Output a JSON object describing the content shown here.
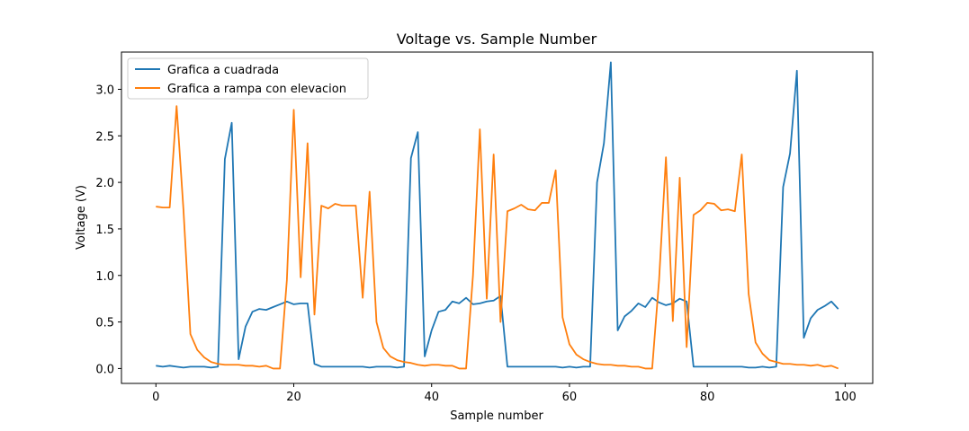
{
  "chart_data": {
    "type": "line",
    "title": "Voltage vs. Sample Number",
    "xlabel": "Sample number",
    "ylabel": "Voltage (V)",
    "xlim": [
      -5,
      104
    ],
    "ylim": [
      -0.16,
      3.4
    ],
    "xticks": [
      0,
      20,
      40,
      60,
      80,
      100
    ],
    "xtick_labels": [
      "0",
      "20",
      "40",
      "60",
      "80",
      "100"
    ],
    "yticks": [
      0.0,
      0.5,
      1.0,
      1.5,
      2.0,
      2.5,
      3.0
    ],
    "ytick_labels": [
      "0.0",
      "0.5",
      "1.0",
      "1.5",
      "2.0",
      "2.5",
      "3.0"
    ],
    "grid": false,
    "legend_position": "top-left",
    "series": [
      {
        "name": "Grafica a cuadrada",
        "color": "#1f77b4",
        "values": [
          0.03,
          0.02,
          0.03,
          0.02,
          0.01,
          0.02,
          0.02,
          0.02,
          0.01,
          0.02,
          2.25,
          2.64,
          0.1,
          0.45,
          0.61,
          0.64,
          0.63,
          0.66,
          0.69,
          0.72,
          0.69,
          0.7,
          0.7,
          0.05,
          0.02,
          0.02,
          0.02,
          0.02,
          0.02,
          0.02,
          0.02,
          0.01,
          0.02,
          0.02,
          0.02,
          0.01,
          0.02,
          2.26,
          2.54,
          0.13,
          0.41,
          0.61,
          0.63,
          0.72,
          0.7,
          0.76,
          0.69,
          0.7,
          0.72,
          0.73,
          0.78,
          0.02,
          0.02,
          0.02,
          0.02,
          0.02,
          0.02,
          0.02,
          0.02,
          0.01,
          0.02,
          0.01,
          0.02,
          0.02,
          2.0,
          2.42,
          3.29,
          0.41,
          0.56,
          0.62,
          0.7,
          0.66,
          0.76,
          0.71,
          0.68,
          0.7,
          0.75,
          0.72,
          0.02,
          0.02,
          0.02,
          0.02,
          0.02,
          0.02,
          0.02,
          0.02,
          0.01,
          0.01,
          0.02,
          0.01,
          0.02,
          1.95,
          2.31,
          3.2,
          0.33,
          0.54,
          0.63,
          0.67,
          0.72,
          0.64
        ]
      },
      {
        "name": "Grafica a rampa con elevacion",
        "color": "#ff7f0e",
        "values": [
          1.74,
          1.73,
          1.73,
          2.82,
          1.7,
          0.37,
          0.2,
          0.12,
          0.07,
          0.05,
          0.04,
          0.04,
          0.04,
          0.03,
          0.03,
          0.02,
          0.03,
          0.0,
          0.0,
          0.95,
          2.78,
          0.98,
          2.42,
          0.58,
          1.75,
          1.72,
          1.77,
          1.75,
          1.75,
          1.75,
          0.76,
          1.9,
          0.5,
          0.22,
          0.13,
          0.09,
          0.07,
          0.06,
          0.04,
          0.03,
          0.04,
          0.04,
          0.03,
          0.03,
          0.0,
          0.0,
          1.0,
          2.57,
          0.75,
          2.3,
          0.5,
          1.69,
          1.72,
          1.76,
          1.71,
          1.7,
          1.78,
          1.78,
          2.13,
          0.55,
          0.26,
          0.15,
          0.1,
          0.07,
          0.05,
          0.04,
          0.04,
          0.03,
          0.03,
          0.02,
          0.02,
          0.0,
          0.0,
          0.95,
          2.27,
          0.51,
          2.05,
          0.23,
          1.65,
          1.7,
          1.78,
          1.77,
          1.7,
          1.71,
          1.69,
          2.3,
          0.8,
          0.28,
          0.16,
          0.09,
          0.07,
          0.05,
          0.05,
          0.04,
          0.04,
          0.03,
          0.04,
          0.02,
          0.03,
          0.0
        ]
      }
    ]
  }
}
